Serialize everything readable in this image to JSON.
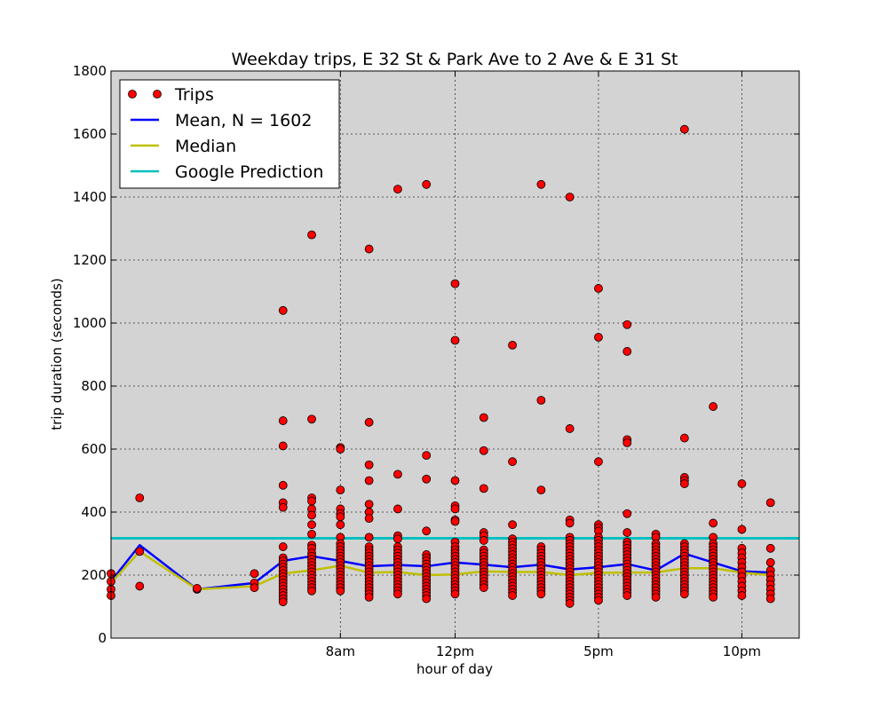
{
  "chart_data": {
    "type": "scatter",
    "title": "Weekday trips,   E 32 St & Park Ave   to   2 Ave & E 31 St",
    "xlabel": "hour of day",
    "ylabel": "trip duration (seconds)",
    "xlim": [
      0,
      24
    ],
    "ylim": [
      0,
      1800
    ],
    "xticks": [
      {
        "x": 8,
        "label": "8am"
      },
      {
        "x": 12,
        "label": "12pm"
      },
      {
        "x": 17,
        "label": "5pm"
      },
      {
        "x": 22,
        "label": "10pm"
      }
    ],
    "yticks": [
      0,
      200,
      400,
      600,
      800,
      1000,
      1200,
      1400,
      1600,
      1800
    ],
    "grid": true,
    "legend_position": "top-left",
    "colors": {
      "trips": "#ff0000",
      "mean": "#0000ff",
      "median": "#bfbf00",
      "google": "#00bfbf",
      "plot_bg": "#d3d3d3"
    },
    "legend": [
      {
        "key": "trips",
        "label": "Trips"
      },
      {
        "key": "mean",
        "label": "Mean, N = 1602"
      },
      {
        "key": "median",
        "label": "Median"
      },
      {
        "key": "google",
        "label": "Google Prediction"
      }
    ],
    "trips": [
      {
        "x": 0,
        "y": [
          205,
          180,
          155,
          135
        ]
      },
      {
        "x": 1,
        "y": [
          445,
          275,
          165
        ]
      },
      {
        "x": 3,
        "y": [
          155,
          158
        ]
      },
      {
        "x": 5,
        "y": [
          205,
          175,
          160
        ]
      },
      {
        "x": 6,
        "y": [
          1040,
          690,
          610,
          485,
          430,
          415,
          290,
          255,
          245,
          235,
          225,
          215,
          205,
          195,
          185,
          175,
          165,
          155,
          145,
          135,
          125,
          115
        ]
      },
      {
        "x": 7,
        "y": [
          1280,
          695,
          445,
          435,
          410,
          390,
          360,
          330,
          295,
          285,
          270,
          260,
          250,
          240,
          230,
          220,
          210,
          200,
          190,
          180,
          170,
          160,
          150
        ]
      },
      {
        "x": 8,
        "y": [
          605,
          600,
          470,
          410,
          395,
          385,
          360,
          320,
          300,
          290,
          280,
          270,
          260,
          250,
          240,
          230,
          220,
          210,
          200,
          190,
          180,
          170,
          160,
          150
        ]
      },
      {
        "x": 9,
        "y": [
          1235,
          685,
          550,
          500,
          425,
          400,
          380,
          320,
          290,
          280,
          270,
          260,
          250,
          240,
          230,
          220,
          210,
          200,
          190,
          180,
          170,
          160,
          150,
          140,
          130
        ]
      },
      {
        "x": 10,
        "y": [
          1425,
          520,
          410,
          325,
          315,
          290,
          280,
          270,
          260,
          250,
          240,
          230,
          220,
          210,
          200,
          190,
          180,
          170,
          160,
          150,
          140
        ]
      },
      {
        "x": 11,
        "y": [
          1440,
          580,
          505,
          340,
          265,
          255,
          245,
          235,
          225,
          215,
          205,
          195,
          185,
          175,
          165,
          155,
          145,
          135,
          125
        ]
      },
      {
        "x": 12,
        "y": [
          1125,
          945,
          500,
          420,
          410,
          375,
          370,
          305,
          290,
          280,
          270,
          260,
          250,
          240,
          230,
          220,
          210,
          200,
          190,
          180,
          170,
          160,
          150,
          140
        ]
      },
      {
        "x": 13,
        "y": [
          700,
          595,
          475,
          335,
          325,
          310,
          280,
          270,
          260,
          250,
          240,
          230,
          220,
          210,
          200,
          190,
          180,
          170,
          160
        ]
      },
      {
        "x": 14,
        "y": [
          930,
          560,
          360,
          315,
          305,
          295,
          285,
          275,
          265,
          255,
          245,
          235,
          225,
          215,
          205,
          195,
          185,
          175,
          165,
          155,
          145,
          135
        ]
      },
      {
        "x": 15,
        "y": [
          1440,
          755,
          470,
          290,
          280,
          270,
          260,
          250,
          240,
          230,
          220,
          210,
          200,
          190,
          180,
          170,
          160,
          150,
          140
        ]
      },
      {
        "x": 16,
        "y": [
          1400,
          665,
          375,
          365,
          320,
          310,
          300,
          290,
          280,
          270,
          260,
          250,
          240,
          230,
          220,
          210,
          200,
          190,
          180,
          170,
          160,
          150,
          140,
          130,
          120,
          110
        ]
      },
      {
        "x": 17,
        "y": [
          1110,
          955,
          560,
          360,
          350,
          340,
          320,
          310,
          300,
          290,
          280,
          270,
          260,
          250,
          240,
          230,
          220,
          210,
          200,
          190,
          180,
          170,
          160,
          150,
          140,
          130,
          120
        ]
      },
      {
        "x": 18,
        "y": [
          995,
          910,
          630,
          620,
          395,
          335,
          305,
          295,
          285,
          275,
          265,
          255,
          245,
          235,
          225,
          215,
          205,
          195,
          185,
          175,
          165,
          155,
          145,
          135
        ]
      },
      {
        "x": 19,
        "y": [
          330,
          320,
          300,
          290,
          280,
          270,
          260,
          250,
          240,
          230,
          220,
          210,
          200,
          190,
          180,
          170,
          160,
          150,
          140,
          130
        ]
      },
      {
        "x": 20,
        "y": [
          1615,
          635,
          510,
          500,
          490,
          300,
          290,
          280,
          270,
          260,
          250,
          240,
          230,
          220,
          210,
          200,
          190,
          180,
          170,
          160,
          150,
          140
        ]
      },
      {
        "x": 21,
        "y": [
          735,
          365,
          320,
          300,
          290,
          280,
          270,
          260,
          250,
          240,
          230,
          220,
          210,
          200,
          190,
          180,
          170,
          160,
          150,
          140,
          130
        ]
      },
      {
        "x": 22,
        "y": [
          490,
          345,
          285,
          270,
          255,
          240,
          225,
          210,
          195,
          180,
          165,
          150,
          135
        ]
      },
      {
        "x": 23,
        "y": [
          430,
          285,
          240,
          215,
          200,
          185,
          170,
          155,
          140,
          125
        ]
      }
    ],
    "mean": {
      "x": [
        0,
        1,
        3,
        5,
        6,
        7,
        8,
        9,
        10,
        11,
        12,
        13,
        14,
        15,
        16,
        17,
        18,
        19,
        20,
        21,
        22,
        23
      ],
      "y": [
        180,
        295,
        155,
        175,
        245,
        260,
        245,
        228,
        232,
        228,
        240,
        233,
        225,
        233,
        218,
        225,
        235,
        215,
        268,
        240,
        212,
        208
      ]
    },
    "median": {
      "x": [
        0,
        1,
        3,
        5,
        6,
        7,
        8,
        9,
        10,
        11,
        12,
        13,
        14,
        15,
        16,
        17,
        18,
        19,
        20,
        21,
        22,
        23
      ],
      "y": [
        175,
        275,
        155,
        165,
        205,
        215,
        230,
        208,
        210,
        200,
        202,
        212,
        210,
        210,
        200,
        207,
        208,
        208,
        222,
        222,
        208,
        200
      ]
    },
    "google_prediction": 317
  }
}
